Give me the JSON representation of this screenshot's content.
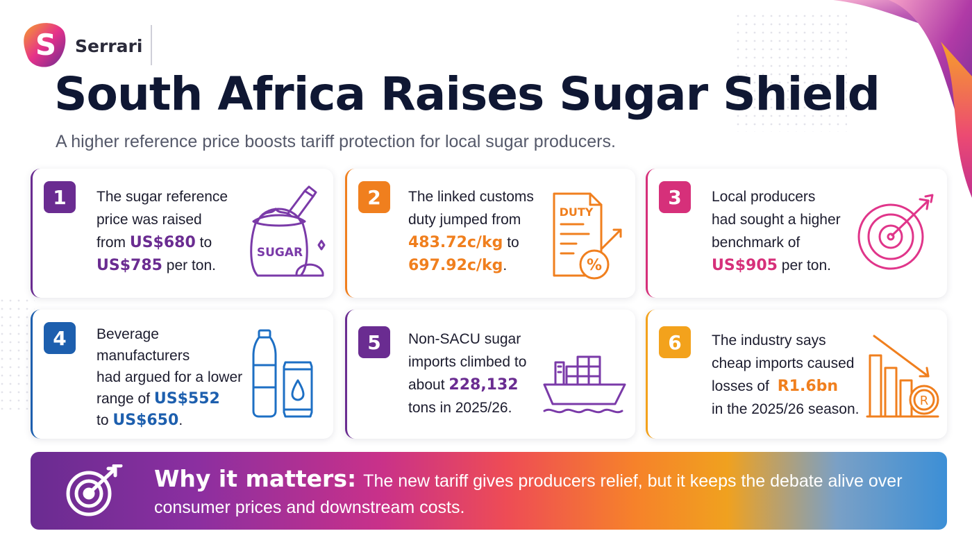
{
  "brand": {
    "name": "Serrari",
    "logo_letter": "S"
  },
  "title": "South Africa Raises Sugar Shield",
  "subtitle": "A higher reference price boosts tariff protection for local sugar producers.",
  "colors": {
    "purple": "#6a2c91",
    "orange": "#f07f1e",
    "pink": "#d6307a",
    "blue": "#1d5fae",
    "amber": "#f3a21c"
  },
  "cards": [
    {
      "number": "1",
      "icon": "sugar-sack-icon",
      "icon_label": "SUGAR",
      "lines": [
        "The sugar reference",
        "price was raised"
      ],
      "l3_pre": "from ",
      "h1": "US$680",
      "l3_post": " to",
      "h2": "US$785",
      "l4_post": " per ton."
    },
    {
      "number": "2",
      "icon": "duty-document-icon",
      "icon_label": "DUTY",
      "icon_symbol": "%",
      "lines": [
        "The linked customs",
        "duty jumped from"
      ],
      "h1": "483.72c/kg",
      "l3_post": " to",
      "h2": "697.92c/kg",
      "l4_post": "."
    },
    {
      "number": "3",
      "icon": "target-arrow-icon",
      "lines": [
        "Local producers",
        "had sought a higher",
        "benchmark of"
      ],
      "h1": "US$905",
      "l4_post": " per ton."
    },
    {
      "number": "4",
      "icon": "bottle-can-icon",
      "lines": [
        "Beverage",
        "manufacturers",
        "had argued for a lower"
      ],
      "l4_pre": "range of ",
      "h1": "US$552",
      "l5_pre": "to ",
      "h2": "US$650",
      "l5_post": "."
    },
    {
      "number": "5",
      "icon": "cargo-ship-icon",
      "lines": [
        "Non-SACU sugar",
        "imports climbed to"
      ],
      "l3_pre": "about ",
      "h1": "228,132",
      "l4": "tons in 2025/26."
    },
    {
      "number": "6",
      "icon": "declining-chart-icon",
      "icon_symbol": "R",
      "lines": [
        "The industry says",
        "cheap imports caused"
      ],
      "l3_pre": "losses of ",
      "h1": "R1.6bn",
      "l4": "in the 2025/26 season."
    }
  ],
  "banner": {
    "icon": "target-icon",
    "lead": "Why it matters:",
    "text": "The new tariff gives producers relief, but it keeps the debate alive over consumer prices and downstream costs."
  }
}
